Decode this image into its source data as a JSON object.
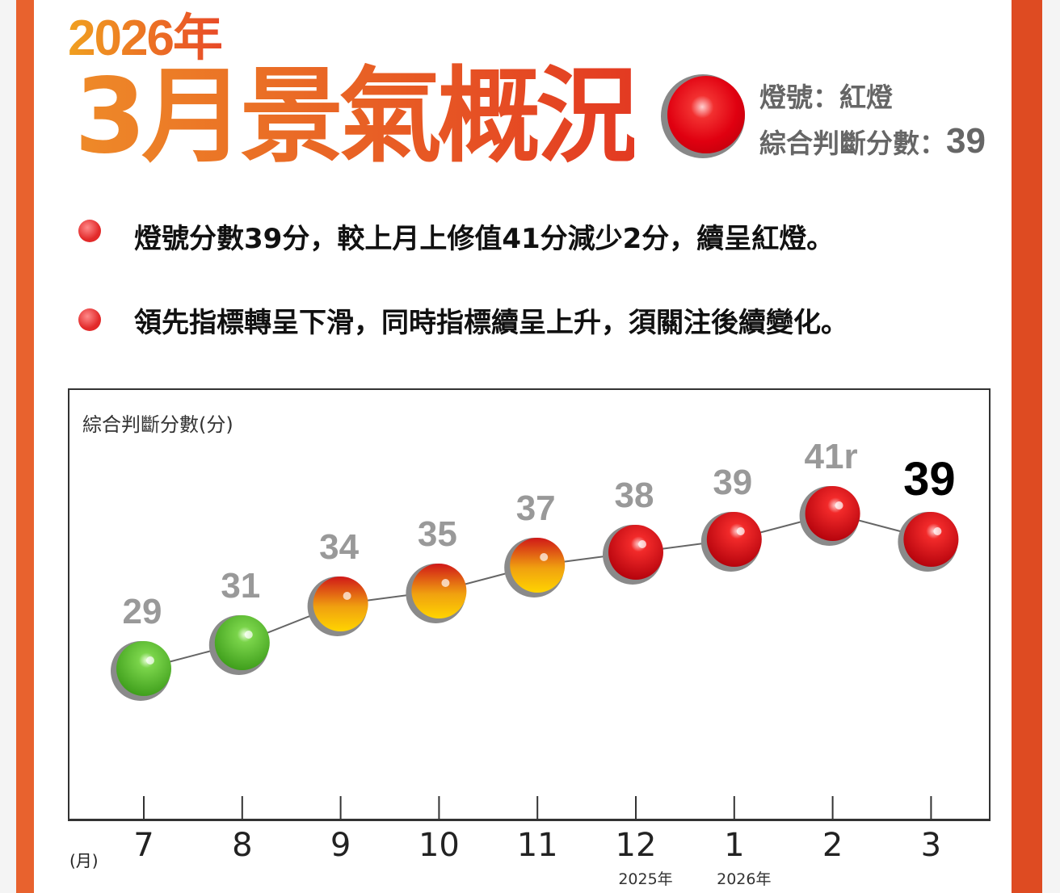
{
  "header": {
    "year": "2026年",
    "title": "3月景氣概況",
    "signal_label": "燈號：紅燈",
    "score_label": "綜合判斷分數：",
    "score": "39"
  },
  "bullets": [
    "燈號分數39分，較上月上修值41分減少2分，續呈紅燈。",
    "領先指標轉呈下滑，同時指標續呈上升，須關注後續變化。"
  ],
  "chart_data": {
    "type": "line",
    "ylabel": "綜合判斷分數(分)",
    "xlabel": "(月)",
    "categories": [
      "7",
      "8",
      "9",
      "10",
      "11",
      "12",
      "1",
      "2",
      "3"
    ],
    "year_labels": [
      {
        "index": 5,
        "text": "2025年"
      },
      {
        "index": 6,
        "text": "2026年"
      }
    ],
    "values": [
      29,
      31,
      34,
      35,
      37,
      38,
      39,
      41,
      39
    ],
    "value_labels": [
      "29",
      "31",
      "34",
      "35",
      "37",
      "38",
      "39",
      "41r",
      "39"
    ],
    "signals": [
      "green",
      "green",
      "yellow-red",
      "yellow-red",
      "yellow-red",
      "red",
      "red",
      "red",
      "red"
    ],
    "ylim": [
      29,
      41
    ],
    "colors": {
      "green": "#5cc02a",
      "yellow-red": "#f5b000",
      "red": "#e00010"
    }
  }
}
